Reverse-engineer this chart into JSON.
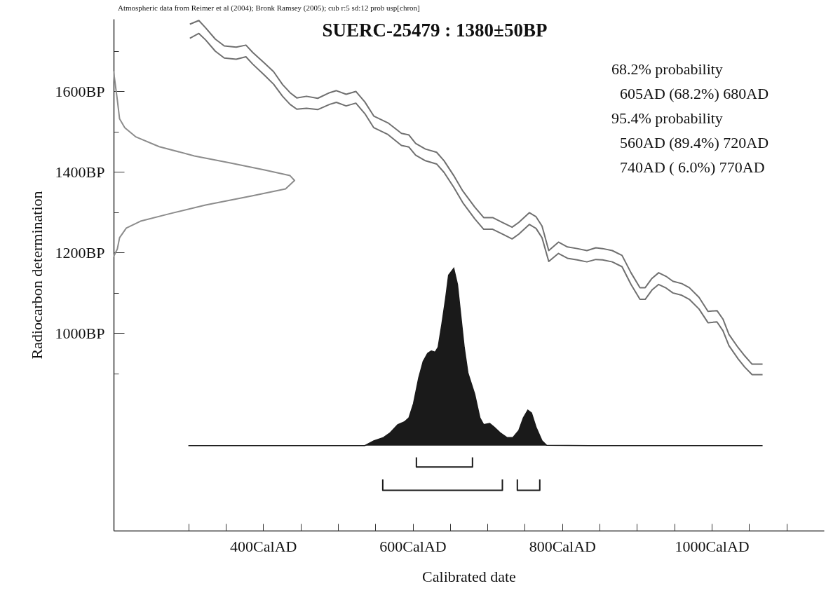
{
  "chart_data": {
    "type": "line",
    "title": "SUERC-25479 : 1380±50BP",
    "xlabel": "Calibrated date",
    "ylabel": "Radiocarbon determination",
    "annotations": [
      "Atmospheric data from Reimer et al (2004); Bronk Ramsey (2005); cub r:5 sd:12 prob usp[chron]",
      "68.2% probability",
      "605AD (68.2%) 680AD",
      "95.4% probability",
      "560AD (89.4%) 720AD",
      "740AD ( 6.0%) 770AD"
    ],
    "xlim": [
      200,
      1150
    ],
    "ylim": [
      510,
      1780
    ],
    "xticks": [
      {
        "value": 300,
        "label": null
      },
      {
        "value": 350,
        "label": null
      },
      {
        "value": 400,
        "label": "400CalAD"
      },
      {
        "value": 450,
        "label": null
      },
      {
        "value": 500,
        "label": null
      },
      {
        "value": 550,
        "label": null
      },
      {
        "value": 600,
        "label": "600CalAD"
      },
      {
        "value": 650,
        "label": null
      },
      {
        "value": 700,
        "label": null
      },
      {
        "value": 750,
        "label": null
      },
      {
        "value": 800,
        "label": "800CalAD"
      },
      {
        "value": 850,
        "label": null
      },
      {
        "value": 900,
        "label": null
      },
      {
        "value": 950,
        "label": null
      },
      {
        "value": 1000,
        "label": "1000CalAD"
      },
      {
        "value": 1050,
        "label": null
      },
      {
        "value": 1100,
        "label": null
      }
    ],
    "yticks": [
      {
        "value": 900,
        "label": null
      },
      {
        "value": 1000,
        "label": "1000BP"
      },
      {
        "value": 1100,
        "label": null
      },
      {
        "value": 1200,
        "label": "1200BP"
      },
      {
        "value": 1300,
        "label": null
      },
      {
        "value": 1400,
        "label": "1400BP"
      },
      {
        "value": 1500,
        "label": null
      },
      {
        "value": 1600,
        "label": "1600BP"
      },
      {
        "value": 1700,
        "label": null
      }
    ],
    "grid": false,
    "series": [
      {
        "color": "#707070",
        "x": [
          302,
          314,
          323,
          336,
          348,
          364,
          377,
          386,
          402,
          414,
          426,
          436,
          445,
          458,
          473,
          489,
          498,
          511,
          524,
          536,
          548,
          567,
          585,
          595,
          604,
          617,
          632,
          642,
          655,
          667,
          683,
          695,
          707,
          720,
          733,
          742,
          756,
          765,
          773,
          782,
          795,
          807,
          820,
          833,
          845,
          854,
          867,
          880,
          892,
          904,
          911,
          920,
          929,
          939,
          948,
          960,
          970,
          983,
          995,
          1007,
          1015,
          1023,
          1035,
          1044,
          1054,
          1068
        ],
        "values": [
          1767,
          1776,
          1758,
          1730,
          1713,
          1710,
          1715,
          1697,
          1670,
          1649,
          1617,
          1597,
          1584,
          1588,
          1583,
          1597,
          1602,
          1593,
          1600,
          1574,
          1539,
          1522,
          1496,
          1492,
          1471,
          1457,
          1449,
          1428,
          1391,
          1353,
          1313,
          1287,
          1287,
          1275,
          1263,
          1275,
          1299,
          1289,
          1266,
          1205,
          1226,
          1214,
          1210,
          1205,
          1212,
          1210,
          1205,
          1193,
          1150,
          1113,
          1113,
          1136,
          1150,
          1141,
          1129,
          1123,
          1113,
          1089,
          1054,
          1056,
          1035,
          997,
          965,
          944,
          923,
          923
        ]
      },
      {
        "color": "#707070",
        "x": [
          302,
          314,
          323,
          336,
          348,
          364,
          377,
          386,
          402,
          414,
          426,
          436,
          445,
          458,
          473,
          489,
          498,
          511,
          524,
          536,
          548,
          567,
          585,
          595,
          604,
          617,
          632,
          642,
          655,
          667,
          683,
          695,
          707,
          720,
          733,
          742,
          756,
          765,
          773,
          782,
          795,
          807,
          820,
          833,
          845,
          854,
          867,
          880,
          892,
          904,
          911,
          920,
          929,
          939,
          948,
          960,
          970,
          983,
          995,
          1007,
          1015,
          1023,
          1035,
          1044,
          1054,
          1068
        ],
        "values": [
          1732,
          1744,
          1728,
          1700,
          1683,
          1680,
          1686,
          1668,
          1640,
          1618,
          1588,
          1568,
          1556,
          1558,
          1555,
          1568,
          1573,
          1564,
          1571,
          1545,
          1510,
          1493,
          1466,
          1462,
          1442,
          1428,
          1420,
          1399,
          1362,
          1324,
          1284,
          1258,
          1258,
          1246,
          1234,
          1246,
          1270,
          1260,
          1237,
          1178,
          1198,
          1186,
          1182,
          1177,
          1183,
          1182,
          1177,
          1165,
          1121,
          1084,
          1084,
          1107,
          1121,
          1112,
          1100,
          1094,
          1084,
          1060,
          1026,
          1028,
          1006,
          969,
          937,
          916,
          897,
          897
        ]
      },
      {
        "color": "#8c8c8c",
        "x": [
          200,
          205,
          208,
          215,
          230,
          261,
          308,
          355,
          402,
          436,
          442,
          430,
          386,
          323,
          276,
          236,
          217,
          208,
          205,
          200
        ],
        "values": [
          1650,
          1579,
          1532,
          1510,
          1487,
          1463,
          1440,
          1423,
          1405,
          1391,
          1379,
          1358,
          1341,
          1318,
          1297,
          1278,
          1261,
          1237,
          1209,
          1190
        ]
      },
      {
        "type": "area",
        "color": "#1a1a1a",
        "x": [
          300,
          442,
          536,
          548,
          561,
          570,
          580,
          589,
          595,
          601,
          608,
          614,
          620,
          625,
          630,
          634,
          639,
          644,
          648,
          655,
          660,
          669,
          674,
          683,
          690,
          695,
          703,
          709,
          717,
          726,
          734,
          742,
          748,
          754,
          759,
          765,
          773,
          779,
          836,
          1068
        ],
        "values": [
          721,
          721,
          721,
          733,
          741,
          753,
          773,
          780,
          790,
          825,
          889,
          930,
          950,
          956,
          953,
          965,
          1023,
          1086,
          1144,
          1161,
          1121,
          965,
          901,
          849,
          790,
          773,
          776,
          767,
          753,
          741,
          741,
          759,
          790,
          809,
          802,
          767,
          733,
          722,
          721,
          721
        ]
      },
      {
        "color": "#1a1a1a",
        "x": [
          605,
          605,
          680,
          680
        ],
        "values": [
          692,
          668,
          668,
          692
        ]
      },
      {
        "color": "#1a1a1a",
        "x": [
          560,
          560,
          720,
          720
        ],
        "values": [
          637,
          610,
          610,
          637
        ]
      },
      {
        "color": "#1a1a1a",
        "x": [
          740,
          740,
          770,
          770
        ],
        "values": [
          637,
          610,
          610,
          637
        ]
      }
    ]
  }
}
